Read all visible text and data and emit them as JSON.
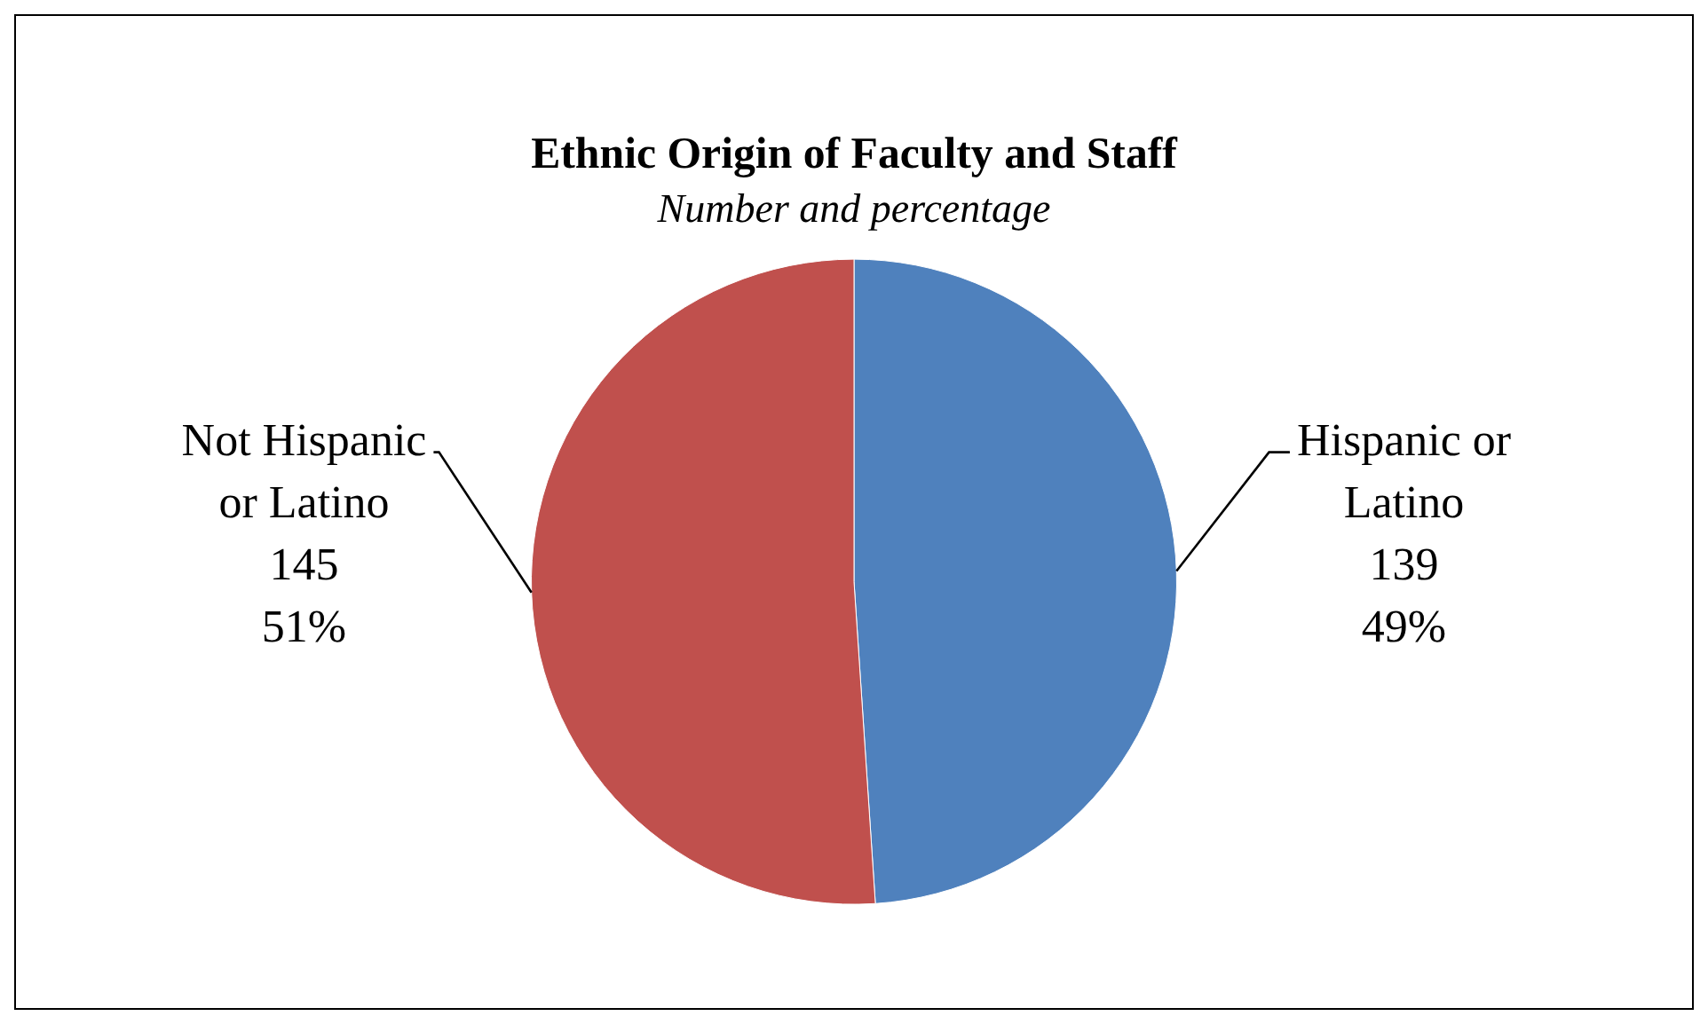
{
  "chart_data": {
    "type": "pie",
    "title": "Ethnic Origin of Faculty and Staff",
    "subtitle": "Number and percentage",
    "categories": [
      "Hispanic or Latino",
      "Not Hispanic or Latino"
    ],
    "values": [
      139,
      145
    ],
    "colors": [
      "#4f81bd",
      "#c0504d"
    ],
    "value_labels": [
      "139\n49%",
      "145\n51%"
    ],
    "legend": false
  }
}
